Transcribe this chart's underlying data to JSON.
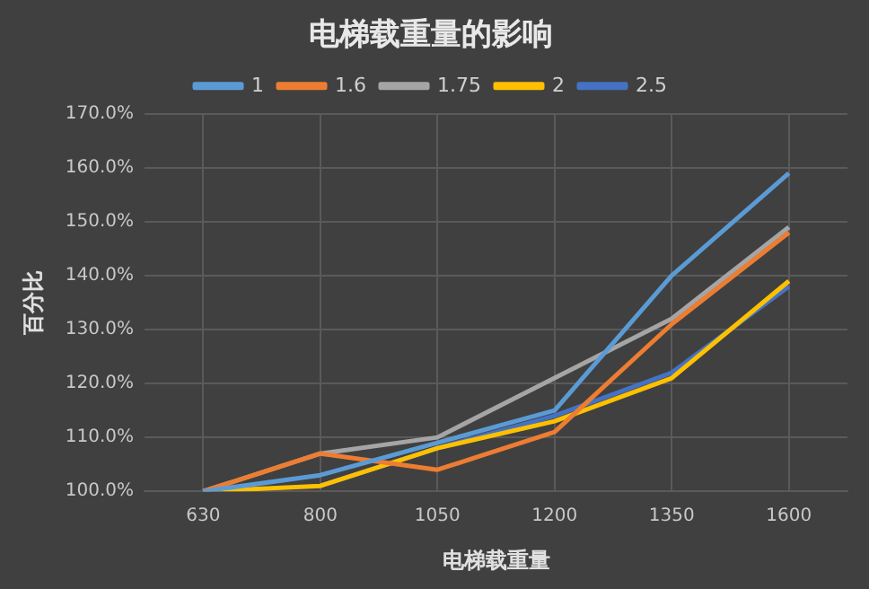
{
  "chart_data": {
    "type": "line",
    "title": "电梯载重量的影响",
    "xlabel": "电梯载重量",
    "ylabel": "百分比",
    "categories": [
      "630",
      "800",
      "1050",
      "1200",
      "1350",
      "1600"
    ],
    "series": [
      {
        "name": "1",
        "color": "#5b9bd5",
        "values": [
          100,
          103,
          109,
          115,
          140,
          159
        ]
      },
      {
        "name": "1.6",
        "color": "#ed7d31",
        "values": [
          100,
          107,
          104,
          111,
          131,
          148
        ]
      },
      {
        "name": "1.75",
        "color": "#a5a5a5",
        "values": [
          100,
          107,
          110,
          121,
          132,
          149
        ]
      },
      {
        "name": "2",
        "color": "#ffc000",
        "values": [
          100,
          101,
          108,
          113,
          121,
          139
        ]
      },
      {
        "name": "2.5",
        "color": "#4472c4",
        "values": [
          null,
          101,
          108,
          114,
          122,
          138
        ]
      }
    ],
    "ylim": [
      100,
      170
    ],
    "yticks": [
      {
        "value": 100,
        "label": "100.0%"
      },
      {
        "value": 110,
        "label": "110.0%"
      },
      {
        "value": 120,
        "label": "120.0%"
      },
      {
        "value": 130,
        "label": "130.0%"
      },
      {
        "value": 140,
        "label": "140.0%"
      },
      {
        "value": 150,
        "label": "150.0%"
      },
      {
        "value": 160,
        "label": "160.0%"
      },
      {
        "value": 170,
        "label": "170.0%"
      }
    ],
    "grid": true,
    "legend": "top",
    "marker": "none",
    "line_style": "solid"
  }
}
